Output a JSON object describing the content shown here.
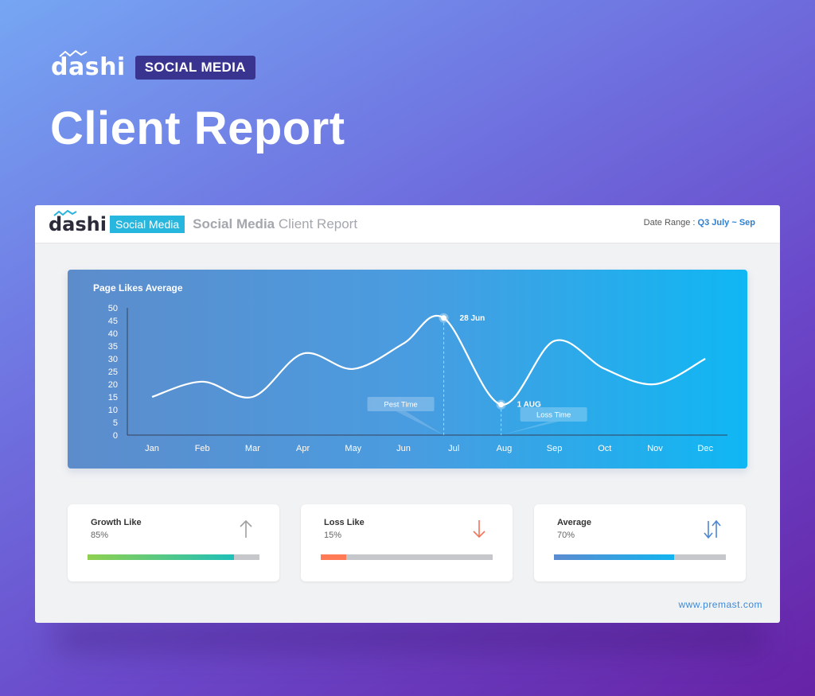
{
  "hero": {
    "brand": "dashi",
    "badge": "SOCIAL MEDIA",
    "title": "Client Report"
  },
  "report": {
    "brand": "dashi",
    "badge": "Social Media",
    "title_bold": "Social Media",
    "title_rest": "Client Report",
    "date_range_label": "Date Range :",
    "date_range_value": "Q3 July ~ Sep",
    "website": "www.premast.com"
  },
  "chart_data": {
    "type": "line",
    "title": "Page Likes Average",
    "categories": [
      "Jan",
      "Feb",
      "Mar",
      "Apr",
      "May",
      "Jun",
      "Jul",
      "Aug",
      "Sep",
      "Oct",
      "Nov",
      "Dec"
    ],
    "x_positions": [
      0,
      1,
      2,
      3,
      4,
      5,
      5.8,
      6.94,
      8,
      9,
      10,
      11
    ],
    "values": [
      15,
      21,
      15,
      32,
      26,
      36,
      46,
      12,
      37,
      26,
      20,
      30
    ],
    "ylim": [
      0,
      50
    ],
    "yticks": [
      0,
      5,
      10,
      15,
      20,
      25,
      30,
      35,
      40,
      45,
      50
    ],
    "grid": false,
    "annotations": [
      {
        "point_label": "28 Jun",
        "callout": "Pest Time",
        "x": 5.8,
        "y": 46
      },
      {
        "point_label": "1 AUG",
        "callout": "Loss Time",
        "x": 6.94,
        "y": 12
      }
    ],
    "line_color": "#ffffff"
  },
  "stats": [
    {
      "label": "Growth Like",
      "value": "85%",
      "percent": 85,
      "icon": "arrow-up-icon",
      "color_start": "#8fd14f",
      "color_end": "#1fbfb8",
      "icon_color": "#a0a0a0"
    },
    {
      "label": "Loss Like",
      "value": "15%",
      "percent": 15,
      "icon": "arrow-down-icon",
      "color_start": "#ff7a55",
      "color_end": "#ff7a55",
      "icon_color": "#f0745a"
    },
    {
      "label": "Average",
      "value": "70%",
      "percent": 70,
      "icon": "arrows-updown-icon",
      "color_start": "#5b8bd0",
      "color_end": "#12b4f0",
      "icon_color": "#4f86d3"
    }
  ]
}
